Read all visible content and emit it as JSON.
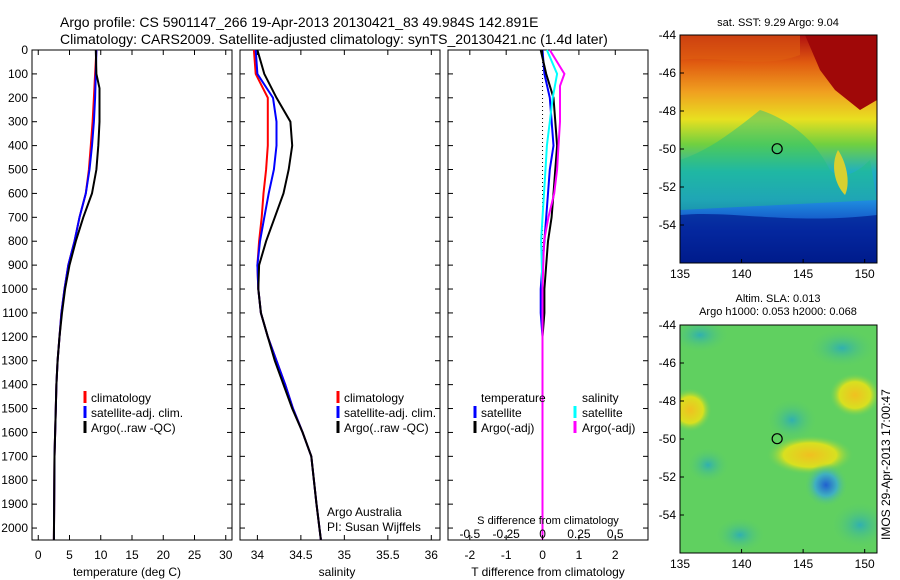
{
  "header": {
    "line1": "Argo profile: CS 5901147_266 19-Apr-2013 20130421_83 49.984S 142.891E",
    "line2": "Climatology: CARS2009. Satellite-adjusted climatology: synTS_20130421.nc (1.4d later)"
  },
  "colors": {
    "climatology": "#ff0000",
    "satellite": "#0000ff",
    "argo": "#000000",
    "argo_salinity_diff": "#ff00ff",
    "satellite_salinity_diff": "#00ffff"
  },
  "chart_data": [
    {
      "type": "line",
      "xlabel": "temperature (deg C)",
      "ylabel": "",
      "xlim": [
        -1,
        31
      ],
      "ylim": [
        2050,
        0
      ],
      "xticks": [
        0,
        5,
        10,
        15,
        20,
        25,
        30
      ],
      "yticks": [
        0,
        100,
        200,
        300,
        400,
        500,
        600,
        700,
        800,
        900,
        1000,
        1100,
        1200,
        1300,
        1400,
        1500,
        1600,
        1700,
        1800,
        1900,
        2000
      ],
      "series": [
        {
          "name": "climatology",
          "color": "#ff0000",
          "x": [
            9.3,
            9.1,
            8.9,
            8.7,
            8.4,
            8.1,
            7.6,
            6.6,
            5.8,
            4.8,
            4.2,
            3.7,
            3.4,
            3.1,
            2.9,
            2.8,
            2.6,
            2.5
          ],
          "y": [
            0,
            100,
            200,
            300,
            400,
            500,
            600,
            700,
            800,
            900,
            1000,
            1100,
            1200,
            1300,
            1400,
            1500,
            1700,
            2050
          ]
        },
        {
          "name": "satellite-adj. clim.",
          "color": "#0000ff",
          "x": [
            9.3,
            9.2,
            9.1,
            8.9,
            8.6,
            8.2,
            7.6,
            6.6,
            5.8,
            4.8,
            4.2,
            3.7,
            3.4,
            3.1,
            2.9,
            2.8,
            2.6,
            2.5
          ],
          "y": [
            0,
            100,
            200,
            300,
            400,
            500,
            600,
            700,
            800,
            900,
            1000,
            1100,
            1200,
            1300,
            1400,
            1500,
            1700,
            2050
          ]
        },
        {
          "name": "Argo(..raw -QC)",
          "color": "#000000",
          "x": [
            9.2,
            9.3,
            9.8,
            9.8,
            9.6,
            9.3,
            8.6,
            7.2,
            6.0,
            5.0,
            4.3,
            3.8,
            3.4,
            3.1,
            2.9,
            2.8,
            2.6,
            2.5
          ],
          "y": [
            0,
            100,
            160,
            300,
            400,
            500,
            600,
            700,
            800,
            900,
            1000,
            1100,
            1200,
            1300,
            1400,
            1500,
            1700,
            2050
          ]
        }
      ],
      "legend": [
        "climatology",
        "satellite-adj. clim.",
        "Argo(..raw -QC)"
      ],
      "legend_position": "lower-right"
    },
    {
      "type": "line",
      "xlabel": "salinity",
      "ylabel": "",
      "xlim": [
        33.8,
        36.1
      ],
      "ylim": [
        2050,
        0
      ],
      "xticks": [
        34,
        34.5,
        35,
        35.5,
        36
      ],
      "series": [
        {
          "name": "climatology",
          "color": "#ff0000",
          "x": [
            33.96,
            33.98,
            34.12,
            34.12,
            34.12,
            34.1,
            34.07,
            34.05,
            34.02,
            34.0,
            34.01,
            34.04,
            34.12,
            34.22,
            34.32,
            34.41,
            34.52,
            34.62,
            34.68,
            34.73
          ],
          "y": [
            0,
            100,
            200,
            300,
            400,
            500,
            600,
            700,
            800,
            900,
            1000,
            1100,
            1200,
            1300,
            1400,
            1500,
            1600,
            1700,
            1900,
            2050
          ]
        },
        {
          "name": "satellite-adj. clim.",
          "color": "#0000ff",
          "x": [
            33.98,
            34.0,
            34.18,
            34.22,
            34.22,
            34.19,
            34.13,
            34.08,
            34.03,
            34.0,
            34.01,
            34.04,
            34.12,
            34.22,
            34.32,
            34.41,
            34.52,
            34.62,
            34.68,
            34.73
          ],
          "y": [
            0,
            100,
            200,
            300,
            400,
            500,
            600,
            700,
            800,
            900,
            1000,
            1100,
            1200,
            1300,
            1400,
            1500,
            1600,
            1700,
            1900,
            2050
          ]
        },
        {
          "name": "Argo(..raw -QC)",
          "color": "#000000",
          "x": [
            34.0,
            34.08,
            34.22,
            34.38,
            34.4,
            34.36,
            34.3,
            34.2,
            34.1,
            34.02,
            34.01,
            34.04,
            34.12,
            34.2,
            34.3,
            34.4,
            34.52,
            34.62,
            34.68,
            34.73
          ],
          "y": [
            0,
            100,
            200,
            300,
            400,
            500,
            600,
            700,
            800,
            900,
            1000,
            1100,
            1200,
            1300,
            1400,
            1500,
            1600,
            1700,
            1900,
            2050
          ]
        }
      ],
      "legend": [
        "climatology",
        "satellite-adj. clim.",
        "Argo(..raw -QC)"
      ],
      "annotation": [
        "Argo Australia",
        "PI: Susan Wijffels"
      ]
    },
    {
      "type": "line",
      "xlabel": "T difference from climatology",
      "xlabel_top": "S difference from climatology",
      "ylim": [
        2050,
        0
      ],
      "xlim": [
        -2.6,
        2.9
      ],
      "xticks": [
        -2,
        -1,
        0,
        1,
        2
      ],
      "xticks_salinity": [
        -0.5,
        -0.25,
        0,
        0.25,
        0.5
      ],
      "series": [
        {
          "name": "temperature satellite",
          "color": "#0000ff",
          "x": [
            0,
            0.05,
            0.2,
            0.3,
            0.2,
            0.15,
            0.1,
            0.05,
            0,
            -0.05,
            -0.05,
            0,
            0,
            0
          ],
          "y": [
            0,
            100,
            200,
            400,
            500,
            600,
            700,
            800,
            900,
            1000,
            1100,
            1200,
            1600,
            2050
          ]
        },
        {
          "name": "temperature Argo(-adj)",
          "color": "#000000",
          "x": [
            -0.05,
            0.1,
            0.3,
            0.4,
            0.35,
            0.3,
            0.25,
            0.15,
            0.1,
            0.05,
            0.05,
            0,
            0,
            0
          ],
          "y": [
            0,
            100,
            200,
            400,
            500,
            600,
            700,
            800,
            900,
            1000,
            1100,
            1200,
            1600,
            2050
          ]
        },
        {
          "name": "salinity satellite",
          "color": "#00ffff",
          "x": [
            0.03,
            0.1,
            0.07,
            0.05,
            0.03,
            0.02,
            0.01,
            0,
            -0.01,
            0,
            0,
            0,
            0
          ],
          "y": [
            0,
            100,
            200,
            300,
            400,
            500,
            600,
            700,
            800,
            1000,
            1200,
            1600,
            2050
          ]
        },
        {
          "name": "salinity Argo(-adj)",
          "color": "#ff00ff",
          "x": [
            0.05,
            0.15,
            0.12,
            0.12,
            0.11,
            0.1,
            0.08,
            0.04,
            0.01,
            0,
            0,
            0,
            0,
            0
          ],
          "y": [
            0,
            100,
            150,
            300,
            400,
            500,
            600,
            700,
            800,
            1000,
            1200,
            1400,
            1700,
            2050
          ]
        }
      ],
      "legend_temperature_title": "temperature",
      "legend_salinity_title": "salinity",
      "legend_entries": [
        "satellite",
        "Argo(-adj)"
      ]
    },
    {
      "type": "heatmap",
      "title": "sat. SST: 9.29  Argo: 9.04",
      "xlim": [
        135,
        151
      ],
      "ylim": [
        -56,
        -44
      ],
      "xticks": [
        135,
        140,
        145,
        150
      ],
      "yticks": [
        -44,
        -46,
        -48,
        -50,
        -52,
        -54
      ],
      "marker": {
        "lon": 142.891,
        "lat": -49.984
      }
    },
    {
      "type": "heatmap",
      "title_line1": "Altim. SLA: 0.013",
      "title_line2": "Argo h1000: 0.053  h2000: 0.068",
      "xlim": [
        135,
        151
      ],
      "ylim": [
        -56,
        -44
      ],
      "xticks": [
        135,
        140,
        145,
        150
      ],
      "yticks": [
        -44,
        -46,
        -48,
        -50,
        -52,
        -54
      ],
      "marker": {
        "lon": 142.891,
        "lat": -49.984
      }
    }
  ],
  "side_label": "IMOS 29-Apr-2013 17:00:47"
}
